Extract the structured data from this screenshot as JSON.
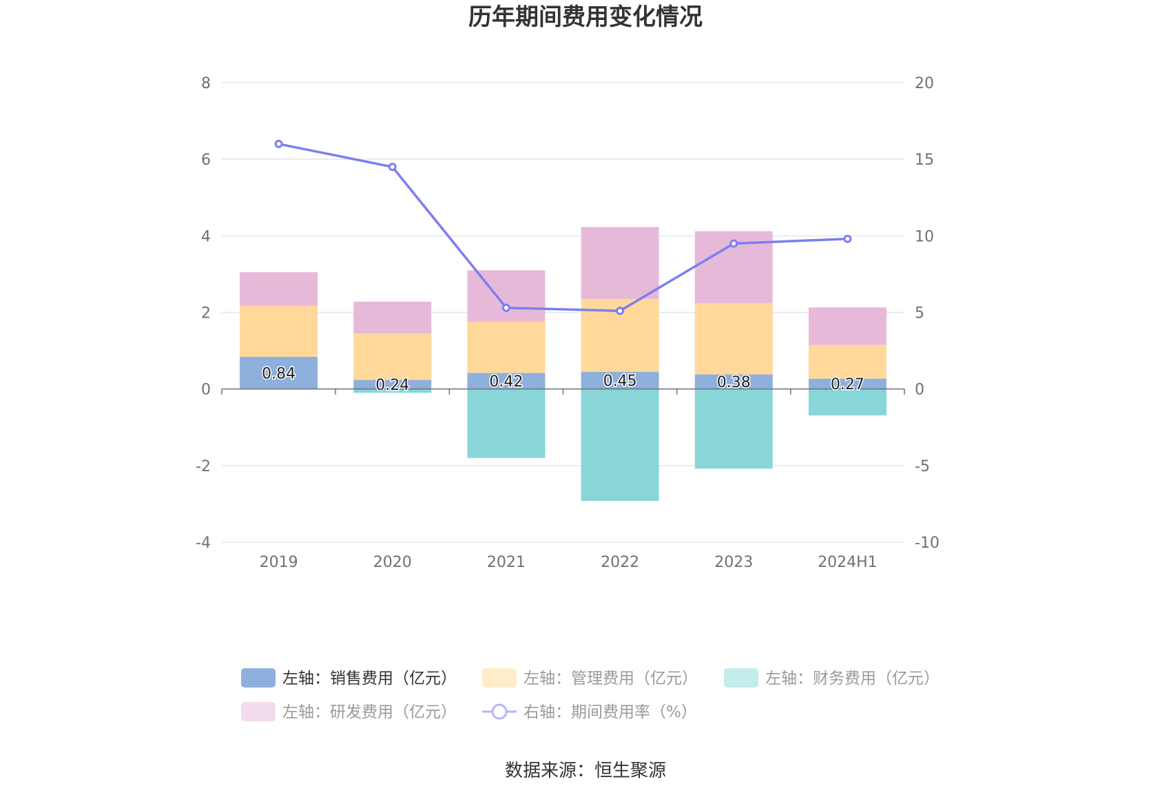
{
  "title": "历年期间费用变化情况",
  "source": "数据来源：恒生聚源",
  "chart_data": {
    "type": "bar",
    "stacked": true,
    "categories": [
      "2019",
      "2020",
      "2021",
      "2022",
      "2023",
      "2024H1"
    ],
    "left_axis": {
      "ylim": [
        -4,
        8
      ],
      "ticks": [
        "-4",
        "-2",
        "0",
        "2",
        "4",
        "6",
        "8"
      ]
    },
    "right_axis": {
      "ylim": [
        -10,
        20
      ],
      "ticks": [
        "-10",
        "-5",
        "0",
        "5",
        "10",
        "15",
        "20"
      ]
    },
    "grid": true,
    "legend_position": "bottom",
    "series": [
      {
        "name": "左轴：销售费用（亿元）",
        "type": "bar",
        "axis": "left",
        "color": "#8eb0dc",
        "legend_color": "#8eb0dc",
        "values": [
          0.84,
          0.24,
          0.42,
          0.45,
          0.38,
          0.27
        ],
        "labels": [
          "0.84",
          "0.24",
          "0.42",
          "0.45",
          "0.38",
          "0.27"
        ]
      },
      {
        "name": "左轴：管理费用（亿元）",
        "type": "bar",
        "axis": "left",
        "color": "#ffd89a",
        "legend_color": "#ffecc9",
        "values": [
          1.33,
          1.21,
          1.34,
          1.9,
          1.86,
          0.88
        ]
      },
      {
        "name": "左轴：财务费用（亿元）",
        "type": "bar",
        "axis": "left",
        "color": "#88d6d8",
        "legend_color": "#c4ecec",
        "values": [
          0.0,
          -0.1,
          -1.8,
          -2.92,
          -2.08,
          -0.69
        ]
      },
      {
        "name": "左轴：研发费用（亿元）",
        "type": "bar",
        "axis": "left",
        "color": "#e7b9d9",
        "legend_color": "#f2dcec",
        "values": [
          0.88,
          0.83,
          1.34,
          1.88,
          1.88,
          0.98
        ]
      },
      {
        "name": "右轴：期间费用率（%）",
        "type": "line",
        "axis": "right",
        "color": "#7b7ef0",
        "legend_color": "#b5b6f5",
        "values": [
          16.0,
          14.5,
          5.3,
          5.1,
          9.5,
          9.8
        ]
      }
    ]
  }
}
